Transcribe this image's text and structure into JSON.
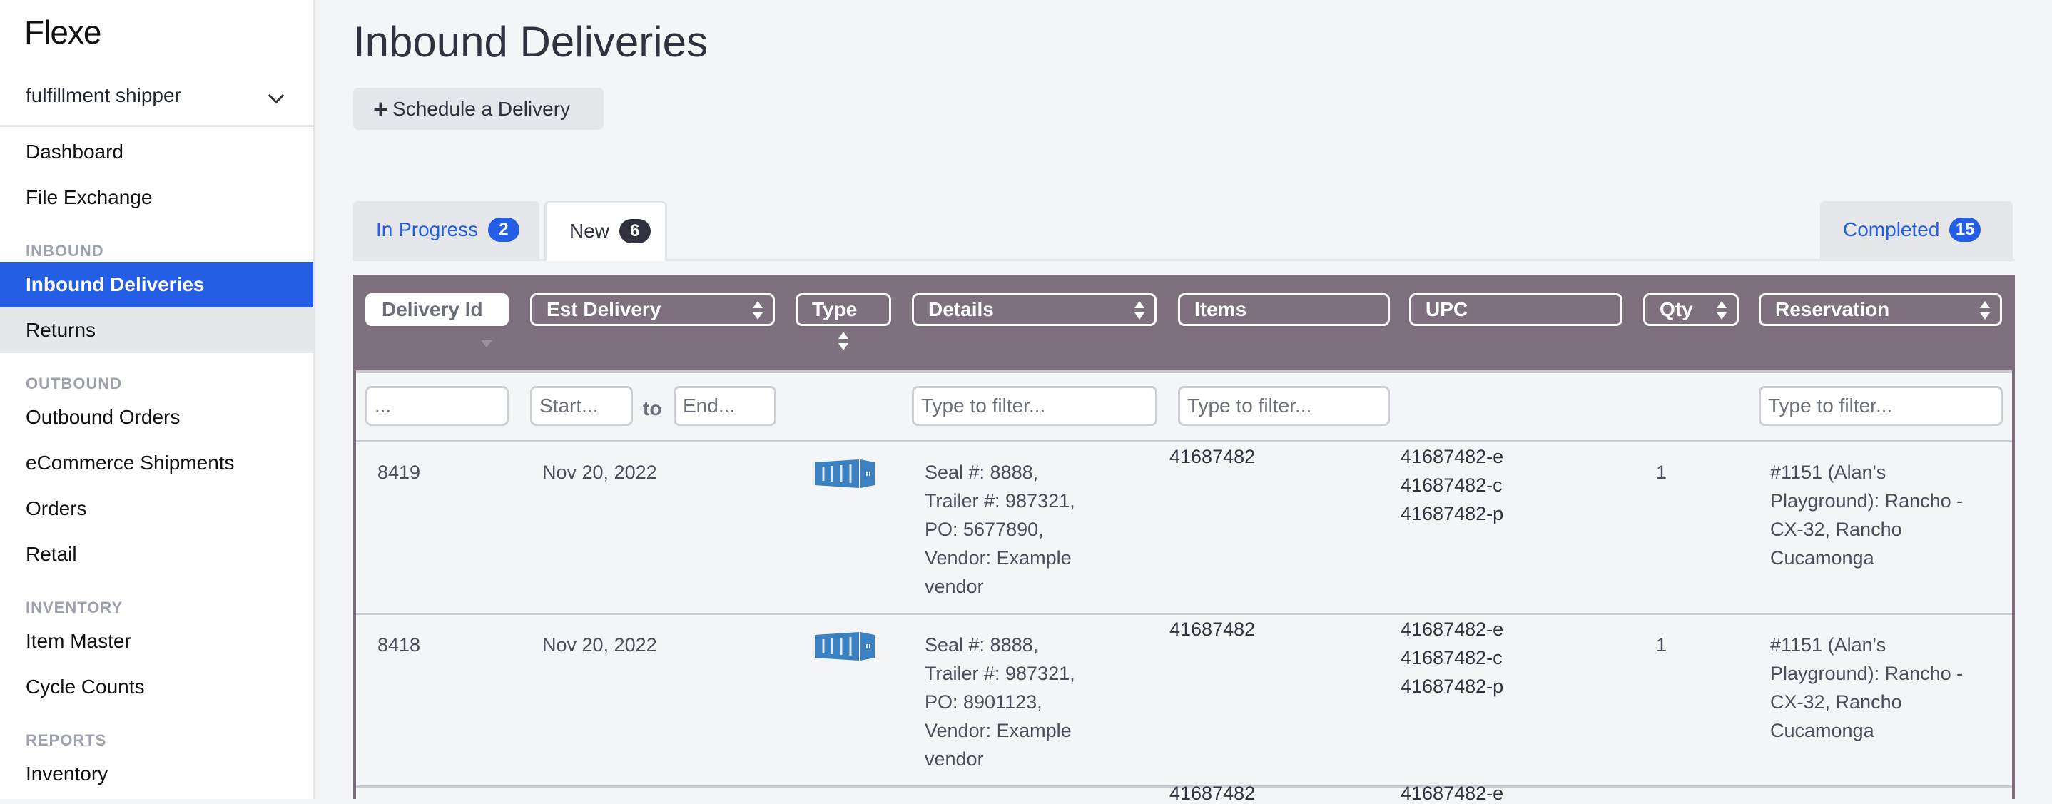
{
  "sidebar": {
    "logo": "Flexe",
    "account": "fulfillment shipper",
    "nav": [
      {
        "type": "item",
        "label": "Dashboard"
      },
      {
        "type": "item",
        "label": "File Exchange"
      },
      {
        "type": "head",
        "label": "INBOUND"
      },
      {
        "type": "item",
        "label": "Inbound Deliveries",
        "state": "active"
      },
      {
        "type": "item",
        "label": "Returns",
        "state": "hover"
      },
      {
        "type": "head",
        "label": "OUTBOUND"
      },
      {
        "type": "item",
        "label": "Outbound Orders"
      },
      {
        "type": "item",
        "label": "eCommerce Shipments"
      },
      {
        "type": "item",
        "label": "Orders"
      },
      {
        "type": "item",
        "label": "Retail"
      },
      {
        "type": "head",
        "label": "INVENTORY"
      },
      {
        "type": "item",
        "label": "Item Master"
      },
      {
        "type": "item",
        "label": "Cycle Counts"
      },
      {
        "type": "head",
        "label": "REPORTS"
      },
      {
        "type": "item",
        "label": "Inventory"
      }
    ]
  },
  "main": {
    "title": "Inbound Deliveries",
    "schedule_button": "Schedule a Delivery",
    "tabs": [
      {
        "label": "In Progress",
        "count": "2"
      },
      {
        "label": "New",
        "count": "6",
        "selected": true
      },
      {
        "label": "Completed",
        "count": "15"
      }
    ],
    "columns": [
      {
        "label": "Delivery Id",
        "sort": "desc"
      },
      {
        "label": "Est Delivery",
        "sort": "sortable"
      },
      {
        "label": "Type",
        "sort": "sortable"
      },
      {
        "label": "Details",
        "sort": "sortable"
      },
      {
        "label": "Items"
      },
      {
        "label": "UPC"
      },
      {
        "label": "Qty",
        "sort": "sortable"
      },
      {
        "label": "Reservation",
        "sort": "sortable"
      }
    ],
    "filters": {
      "delivery_id": "...",
      "start": "Start...",
      "to": "to",
      "end": "End...",
      "details": "Type to filter...",
      "items": "Type to filter...",
      "reservation": "Type to filter..."
    },
    "rows": [
      {
        "id": "8419",
        "est": "Nov 20, 2022",
        "type_icon": "shipping-container-icon",
        "details": [
          "Seal #: 8888,",
          "Trailer #: 987321,",
          "PO: 5677890,",
          "Vendor: Example",
          "vendor"
        ],
        "items": [
          "41687482"
        ],
        "upc": [
          "41687482-e",
          "41687482-c",
          "41687482-p"
        ],
        "qty": "1",
        "reservation": [
          "#1151 (Alan's",
          "Playground): Rancho -",
          "CX-32, Rancho",
          "Cucamonga"
        ]
      },
      {
        "id": "8418",
        "est": "Nov 20, 2022",
        "type_icon": "shipping-container-icon",
        "details": [
          "Seal #: 8888,",
          "Trailer #: 987321,",
          "PO: 8901123,",
          "Vendor: Example",
          "vendor"
        ],
        "items": [
          "41687482"
        ],
        "upc": [
          "41687482-e",
          "41687482-c",
          "41687482-p"
        ],
        "qty": "1",
        "reservation": [
          "#1151 (Alan's",
          "Playground): Rancho -",
          "CX-32, Rancho",
          "Cucamonga"
        ]
      },
      {
        "id": "",
        "est": "",
        "details": [],
        "items": [
          "41687482"
        ],
        "upc": [
          "41687482-e"
        ],
        "qty": "",
        "reservation": []
      }
    ],
    "colors": {
      "accent": "#245ee5",
      "table_header": "#7e707e",
      "container_icon": "#3b80c0"
    }
  }
}
